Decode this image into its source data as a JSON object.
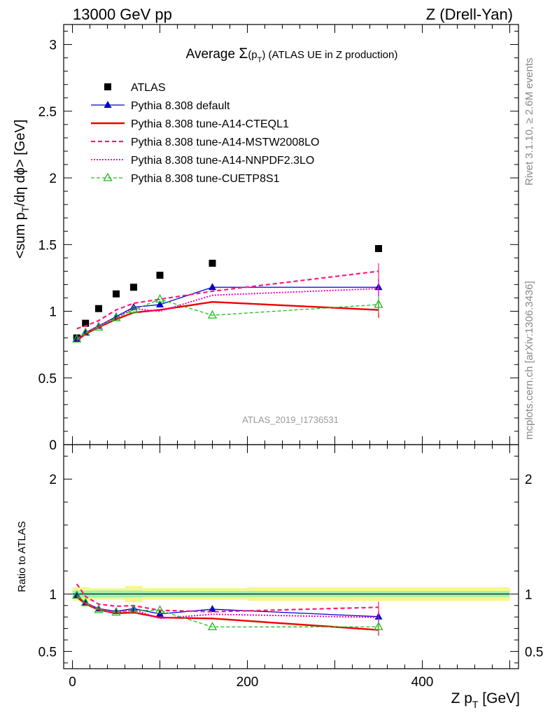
{
  "header": {
    "energy": "13000 GeV pp",
    "process": "Z (Drell-Yan)"
  },
  "side": {
    "rivet": "Rivet 3.1.10, ≥ 2.6M events",
    "mcplots": "mcplots.cern.ch [arXiv:1306.3436]"
  },
  "chart_data": {
    "type": "line",
    "title_prefix": "Average ",
    "title_sigma": "Σ",
    "title_open": "(p",
    "title_sub": "T",
    "title_close": ")",
    "title_rest": " (ATLAS UE in Z production)",
    "analysis_id": "ATLAS_2019_I1736531",
    "ylabel_pre": "<sum p",
    "ylabel_sub": "T",
    "ylabel_post": "/dη dϕ> [GeV]",
    "ratio_ylabel": "Ratio to ATLAS",
    "xlabel_pre": "Z p",
    "xlabel_sub": "T",
    "xlabel_post": " [GeV]",
    "xlim": [
      -10,
      510
    ],
    "ylim": [
      0,
      3.15
    ],
    "ratio_ylim": [
      0.35,
      2.3
    ],
    "x_ticks": [
      0,
      200,
      400
    ],
    "y_ticks": [
      0,
      0.5,
      1,
      1.5,
      2,
      2.5,
      3
    ],
    "y_tick_labels": [
      "0",
      "0.5",
      "1",
      "1.5",
      "2",
      "2.5",
      "3"
    ],
    "ratio_ticks": [
      0.5,
      1,
      2
    ],
    "ratio_tick_labels": [
      "0.5",
      "1",
      "2"
    ],
    "x": [
      5,
      15,
      30,
      50,
      70,
      100,
      160,
      350
    ],
    "bins": [
      [
        0,
        10
      ],
      [
        10,
        20
      ],
      [
        20,
        40
      ],
      [
        40,
        60
      ],
      [
        60,
        80
      ],
      [
        80,
        120
      ],
      [
        120,
        200
      ],
      [
        200,
        500
      ]
    ],
    "band_inner": [
      0.03,
      0.03,
      0.03,
      0.03,
      0.03,
      0.025,
      0.025,
      0.025
    ],
    "band_outer": [
      0.06,
      0.06,
      0.05,
      0.05,
      0.07,
      0.05,
      0.05,
      0.06
    ],
    "legend_placement": "top-left",
    "series": [
      {
        "name": "ATLAS",
        "values": [
          0.8,
          0.91,
          1.02,
          1.13,
          1.18,
          1.27,
          1.36,
          1.47
        ],
        "color": "#000000",
        "style": "marker-square"
      },
      {
        "name": "Pythia 8.308 default",
        "values": [
          0.79,
          0.84,
          0.89,
          0.96,
          1.03,
          1.05,
          1.18,
          1.18
        ],
        "color": "#0000cc",
        "style": "solid-thin-triangle"
      },
      {
        "name": "Pythia 8.308 tune-A14-CTEQL1",
        "values": [
          0.78,
          0.83,
          0.88,
          0.94,
          0.99,
          1.01,
          1.07,
          1.01
        ],
        "color": "#ee0000",
        "style": "solid-thick"
      },
      {
        "name": "Pythia 8.308 tune-A14-MSTW2008LO",
        "values": [
          0.87,
          0.89,
          0.93,
          1.01,
          1.06,
          1.09,
          1.15,
          1.3
        ],
        "color": "#ff1a75",
        "style": "dashed"
      },
      {
        "name": "Pythia 8.308 tune-A14-NNPDF2.3LO",
        "values": [
          0.79,
          0.84,
          0.89,
          0.95,
          1.02,
          1.0,
          1.12,
          1.17
        ],
        "color": "#ff00cc",
        "style": "dotted"
      },
      {
        "name": "Pythia 8.308 tune-CUETP8S1",
        "values": [
          0.79,
          0.84,
          0.88,
          0.95,
          1.01,
          1.09,
          0.97,
          1.05
        ],
        "color": "#22bb22",
        "style": "dashed-open-triangle"
      }
    ]
  }
}
